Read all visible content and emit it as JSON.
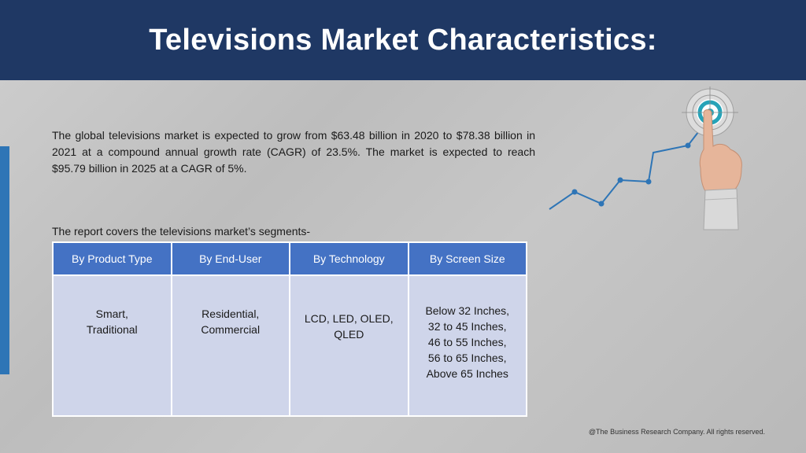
{
  "header": {
    "title": "Televisions Market Characteristics:"
  },
  "intro": {
    "text": "The global televisions market is expected to grow from $63.48 billion in 2020 to $78.38 billion in 2021 at a compound annual growth rate (CAGR) of 23.5%. The market is expected to reach $95.79 billion in 2025 at a CAGR of 5%."
  },
  "segments": {
    "label": "The report covers the televisions market’s segments-",
    "headers": [
      "By Product Type",
      "By End-User",
      "By Technology",
      "By Screen Size"
    ],
    "cells": [
      [
        "Smart,",
        "Traditional"
      ],
      [
        "Residential,",
        "Commercial"
      ],
      [
        "LCD, LED, OLED,",
        "QLED"
      ],
      [
        "Below 32 Inches,",
        "32 to 45 Inches,",
        "46 to 55 Inches,",
        "56 to 65 Inches,",
        "Above 65 Inches"
      ]
    ]
  },
  "illustration": {
    "icon": "growth-chart-target-hand-icon"
  },
  "footer": {
    "copyright": "@The Business Research Company. All rights reserved."
  },
  "colors": {
    "header_bg": "#1f3864",
    "accent_bar": "#2e75b6",
    "table_header": "#4472c4",
    "table_cell": "#cfd5ea"
  }
}
